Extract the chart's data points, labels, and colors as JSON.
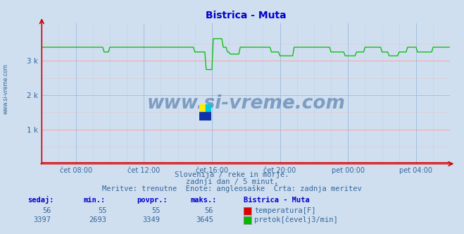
{
  "title": "Bistrica - Muta",
  "title_color": "#0000cc",
  "background_color": "#d0dff0",
  "plot_bg_color": "#d0dff0",
  "grid_color_h": "#ff9999",
  "grid_color_v": "#99bbdd",
  "axis_color": "#cc0000",
  "ylabel_color": "#336699",
  "xlabel_color": "#336699",
  "temp_color": "#dd0000",
  "flow_color": "#00bb00",
  "temp_value": 56,
  "temp_min": 55,
  "temp_avg": 55,
  "temp_max": 56,
  "flow_sedaj": 3397,
  "flow_min": 2693,
  "flow_avg": 3349,
  "flow_max": 3645,
  "ylim": [
    0,
    4095
  ],
  "yticks": [
    0,
    1000,
    2000,
    3000
  ],
  "ytick_labels": [
    "",
    "1 k",
    "2 k",
    "3 k"
  ],
  "x_tick_labels": [
    "čet 08:00",
    "čet 12:00",
    "čet 16:00",
    "čet 20:00",
    "pet 00:00",
    "pet 04:00"
  ],
  "subtitle_line1": "Slovenija / reke in morje.",
  "subtitle_line2": "zadnji dan / 5 minut.",
  "subtitle_line3": "Meritve: trenutne  Enote: angleosaške  Črta: zadnja meritev",
  "subtitle_color": "#336699",
  "watermark_text": "www.si-vreme.com",
  "watermark_color": "#1a4d8a",
  "left_label": "www.si-vreme.com",
  "left_label_color": "#336699",
  "n_points": 289,
  "xlim": [
    0,
    288
  ],
  "x_ticks": [
    24,
    72,
    120,
    168,
    216,
    264
  ]
}
